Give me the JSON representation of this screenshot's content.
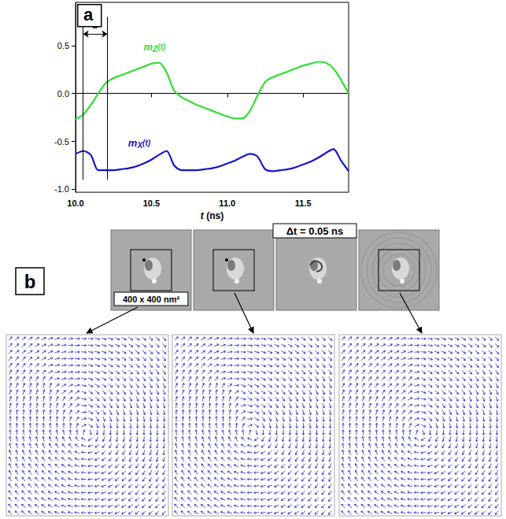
{
  "chart_data": {
    "type": "line",
    "panel": "a",
    "x_label": "t (ns)",
    "x": [
      10.0,
      10.05,
      10.1,
      10.15,
      10.2,
      10.25,
      10.3,
      10.35,
      10.4,
      10.45,
      10.5,
      10.55,
      10.6,
      10.65,
      10.7,
      10.75,
      10.8,
      10.85,
      10.9,
      10.95,
      11.0,
      11.05,
      11.1,
      11.15,
      11.2,
      11.25,
      11.3,
      11.35,
      11.4,
      11.45,
      11.5,
      11.55,
      11.6,
      11.65,
      11.7,
      11.75,
      11.8
    ],
    "series": [
      {
        "name": "mZ(t)",
        "color": "#33dd33",
        "values": [
          -0.27,
          -0.22,
          -0.12,
          0.0,
          0.11,
          0.16,
          0.19,
          0.22,
          0.25,
          0.28,
          0.31,
          0.32,
          0.22,
          0.03,
          -0.04,
          -0.08,
          -0.12,
          -0.15,
          -0.18,
          -0.21,
          -0.24,
          -0.26,
          -0.26,
          -0.18,
          -0.02,
          0.12,
          0.17,
          0.2,
          0.23,
          0.26,
          0.29,
          0.31,
          0.33,
          0.32,
          0.26,
          0.14,
          0.0
        ]
      },
      {
        "name": "mX(t)",
        "color": "#1515c8",
        "values": [
          -0.63,
          -0.6,
          -0.64,
          -0.8,
          -0.8,
          -0.8,
          -0.79,
          -0.78,
          -0.76,
          -0.73,
          -0.69,
          -0.64,
          -0.6,
          -0.75,
          -0.8,
          -0.8,
          -0.8,
          -0.79,
          -0.78,
          -0.76,
          -0.73,
          -0.7,
          -0.66,
          -0.63,
          -0.66,
          -0.79,
          -0.81,
          -0.8,
          -0.79,
          -0.77,
          -0.74,
          -0.71,
          -0.67,
          -0.62,
          -0.58,
          -0.7,
          -0.81
        ]
      }
    ],
    "xlim": [
      10.0,
      11.8
    ],
    "xticks": [
      {
        "value": 10,
        "label": "10.0"
      },
      10.5,
      {
        "value": 11,
        "label": "11.0"
      },
      11.5
    ],
    "ylim": [
      -1.03,
      0.95
    ],
    "yticks": [
      {
        "value": -1,
        "label": "-1.0"
      },
      -0.5,
      {
        "value": 0,
        "label": "0.0"
      },
      0.5
    ],
    "grid": false,
    "annotations": [
      {
        "text": "b",
        "x_start": 10.05,
        "x_end": 10.21,
        "y": 0.62,
        "y_top": 0.8,
        "y_bottom": -0.9
      }
    ]
  },
  "panel_b": {
    "panel": "b",
    "time_step_label": "Δt = 0.05 ns",
    "scale_label": "400 x 400 nm²"
  }
}
